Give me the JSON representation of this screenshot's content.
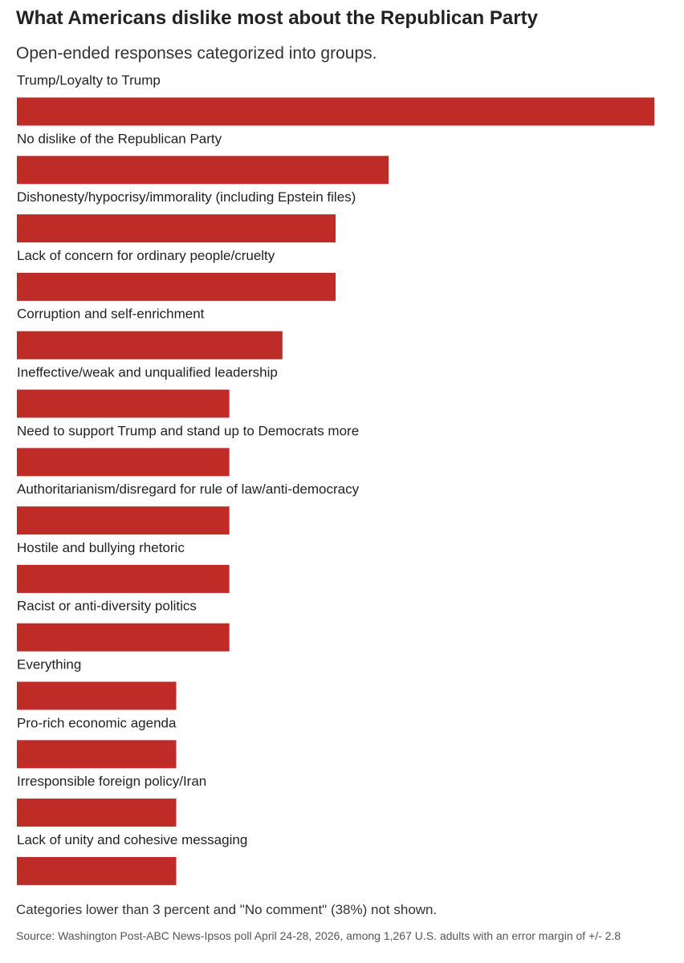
{
  "title": "What Americans dislike most about the Republican Party",
  "subtitle": "Open-ended responses categorized into groups.",
  "footnote": "Categories lower than 3 percent and \"No comment\" (38%) not shown.",
  "source": "Source: Washington Post-ABC News-Ipsos poll April 24-28, 2026, among 1,267 U.S. adults with an error margin of +/- 2.8",
  "colors": {
    "bar": "#bf2b27"
  },
  "chart_data": {
    "type": "bar",
    "orientation": "horizontal",
    "title": "What Americans dislike most about the Republican Party",
    "subtitle": "Open-ended responses categorized into groups.",
    "categories": [
      "Trump/Loyalty to Trump",
      "No dislike of the Republican Party",
      "Dishonesty/hypocrisy/immorality (including Epstein files)",
      "Lack of concern for ordinary people/cruelty",
      "Corruption and self-enrichment",
      "Ineffective/weak and unqualified leadership",
      "Need to support Trump and stand up to Democrats more",
      "Authoritarianism/disregard for rule of law/anti-democracy",
      "Hostile and bullying rhetoric",
      "Racist or anti-diversity politics",
      "Everything",
      "Pro-rich economic agenda",
      "Irresponsible foreign policy/Iran",
      "Lack of unity and cohesive messaging"
    ],
    "values": [
      12,
      7,
      6,
      6,
      5,
      4,
      4,
      4,
      4,
      4,
      3,
      3,
      3,
      3
    ],
    "unit": "percent",
    "xlim": [
      0,
      12
    ],
    "grid": false,
    "legend": "none"
  }
}
